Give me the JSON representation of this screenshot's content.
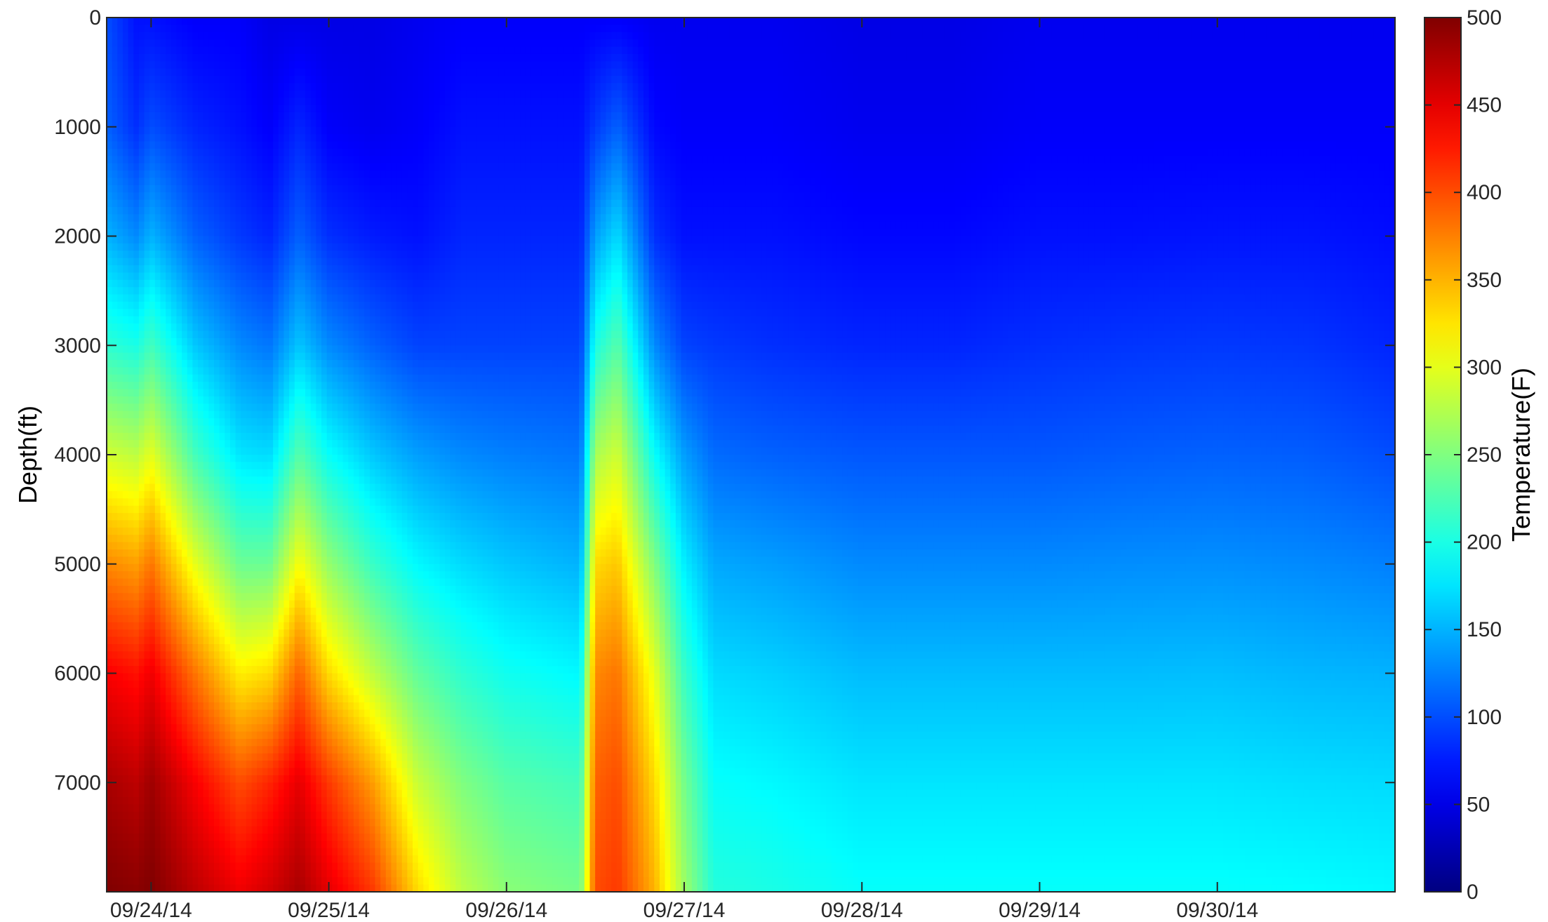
{
  "chart_data": {
    "type": "heatmap",
    "title": "",
    "xlabel": "",
    "ylabel": "Depth(ft)",
    "colorbar_label": "Temperature(F)",
    "colormap": "jet",
    "x_ticks": [
      "09/24/14",
      "09/25/14",
      "09/26/14",
      "09/27/14",
      "09/28/14",
      "09/29/14",
      "09/30/14"
    ],
    "xlim": [
      "09/23/14 18:00",
      "10/01/14 00:00"
    ],
    "y_ticks": [
      0,
      1000,
      2000,
      3000,
      4000,
      5000,
      6000,
      7000
    ],
    "ylim": [
      0,
      8000
    ],
    "y_reversed": true,
    "colorbar_ticks": [
      0,
      50,
      100,
      150,
      200,
      250,
      300,
      350,
      400,
      450,
      500
    ],
    "clim": [
      0,
      500
    ],
    "grid": false,
    "series": [
      {
        "time": "09/23/14 18:00",
        "temperature_profile": [
          100,
          110,
          150,
          210,
          290,
          370,
          440,
          480,
          500
        ]
      },
      {
        "time": "09/23/14 22:00",
        "temperature_profile": [
          70,
          85,
          130,
          200,
          280,
          360,
          430,
          470,
          495
        ]
      },
      {
        "time": "09/24/14 00:00",
        "temperature_profile": [
          70,
          100,
          150,
          220,
          300,
          380,
          445,
          485,
          500
        ]
      },
      {
        "time": "09/24/14 06:00",
        "temperature_profile": [
          60,
          80,
          110,
          160,
          220,
          300,
          380,
          440,
          470
        ]
      },
      {
        "time": "09/24/14 12:00",
        "temperature_profile": [
          60,
          70,
          90,
          130,
          175,
          240,
          320,
          400,
          445
        ]
      },
      {
        "time": "09/24/14 16:00",
        "temperature_profile": [
          50,
          60,
          80,
          120,
          170,
          240,
          330,
          420,
          460
        ]
      },
      {
        "time": "09/24/14 20:00",
        "temperature_profile": [
          50,
          80,
          110,
          160,
          230,
          310,
          390,
          450,
          480
        ]
      },
      {
        "time": "09/25/14 00:00",
        "temperature_profile": [
          50,
          60,
          85,
          130,
          190,
          260,
          330,
          410,
          450
        ]
      },
      {
        "time": "09/25/14 06:00",
        "temperature_profile": [
          50,
          55,
          75,
          110,
          160,
          215,
          280,
          360,
          410
        ]
      },
      {
        "time": "09/25/14 12:00",
        "temperature_profile": [
          55,
          60,
          70,
          95,
          140,
          185,
          235,
          285,
          330
        ]
      },
      {
        "time": "09/25/14 18:00",
        "temperature_profile": [
          60,
          70,
          80,
          95,
          130,
          170,
          210,
          250,
          280
        ]
      },
      {
        "time": "09/26/14 00:00",
        "temperature_profile": [
          60,
          70,
          80,
          95,
          125,
          160,
          195,
          230,
          255
        ]
      },
      {
        "time": "09/26/14 10:00",
        "temperature_profile": [
          60,
          70,
          80,
          95,
          120,
          150,
          185,
          220,
          245
        ]
      },
      {
        "time": "09/26/14 12:00",
        "temperature_profile": [
          60,
          90,
          140,
          200,
          270,
          330,
          370,
          390,
          400
        ]
      },
      {
        "time": "09/26/14 15:00",
        "temperature_profile": [
          60,
          110,
          170,
          230,
          290,
          340,
          380,
          400,
          410
        ]
      },
      {
        "time": "09/26/14 20:00",
        "temperature_profile": [
          55,
          65,
          85,
          130,
          190,
          250,
          300,
          330,
          350
        ]
      },
      {
        "time": "09/27/14 00:00",
        "temperature_profile": [
          55,
          60,
          70,
          95,
          140,
          180,
          215,
          245,
          265
        ]
      },
      {
        "time": "09/27/14 04:00",
        "temperature_profile": [
          55,
          60,
          70,
          90,
          115,
          145,
          170,
          190,
          205
        ]
      },
      {
        "time": "09/27/14 12:00",
        "temperature_profile": [
          55,
          60,
          70,
          85,
          110,
          140,
          165,
          185,
          200
        ]
      },
      {
        "time": "09/28/14 00:00",
        "temperature_profile": [
          50,
          55,
          65,
          80,
          105,
          130,
          155,
          175,
          190
        ]
      },
      {
        "time": "09/28/14 12:00",
        "temperature_profile": [
          50,
          55,
          65,
          80,
          105,
          130,
          155,
          175,
          190
        ]
      },
      {
        "time": "09/29/14 00:00",
        "temperature_profile": [
          55,
          60,
          70,
          85,
          105,
          130,
          155,
          175,
          190
        ]
      },
      {
        "time": "09/29/14 12:00",
        "temperature_profile": [
          55,
          60,
          70,
          88,
          108,
          132,
          155,
          175,
          190
        ]
      },
      {
        "time": "09/30/14 00:00",
        "temperature_profile": [
          55,
          60,
          72,
          90,
          110,
          133,
          156,
          175,
          190
        ]
      },
      {
        "time": "09/30/14 12:00",
        "temperature_profile": [
          55,
          60,
          72,
          88,
          108,
          130,
          152,
          172,
          188
        ]
      },
      {
        "time": "10/01/14 00:00",
        "temperature_profile": [
          55,
          60,
          68,
          80,
          100,
          125,
          150,
          170,
          185
        ]
      }
    ],
    "profile_depths": [
      0,
      1000,
      2000,
      3000,
      4000,
      5000,
      6000,
      7000,
      8000
    ]
  }
}
